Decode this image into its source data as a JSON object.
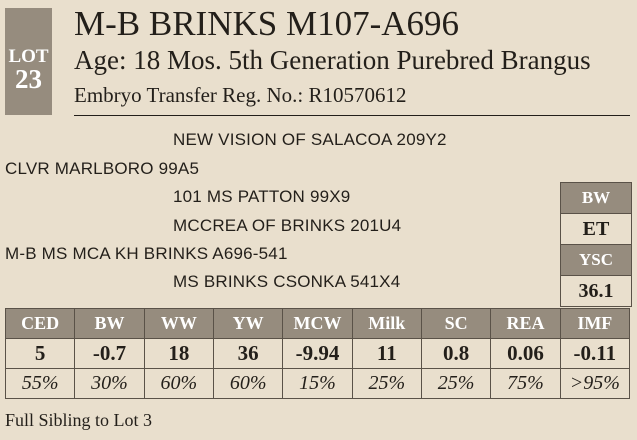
{
  "lot": {
    "label": "LOT",
    "number": "23"
  },
  "header": {
    "title": "M-B BRINKS M107-A696",
    "subtitle": "Age: 18 Mos.  5th Generation  Purebred Brangus",
    "details": "Embryo Transfer  Reg. No.: R10570612"
  },
  "pedigree": [
    "NEW VISION OF SALACOA  209Y2",
    "CLVR MARLBORO 99A5",
    "101 MS PATTON 99X9",
    "MCCREA OF BRINKS 201U4",
    "M-B MS MCA KH BRINKS A696-541",
    "MS BRINKS CSONKA 541X4"
  ],
  "side": {
    "bw_label": "BW",
    "bw_value": "ET",
    "ysc_label": "YSC",
    "ysc_value": "36.1"
  },
  "epd": {
    "headers": [
      "CED",
      "BW",
      "WW",
      "YW",
      "MCW",
      "Milk",
      "SC",
      "REA",
      "IMF"
    ],
    "values": [
      "5",
      "-0.7",
      "18",
      "36",
      "-9.94",
      "11",
      "0.8",
      "0.06",
      "-0.11"
    ],
    "percentiles": [
      "55%",
      "30%",
      "60%",
      "60%",
      "15%",
      "25%",
      "25%",
      "75%",
      ">95%"
    ]
  },
  "footer": "Full Sibling to Lot 3"
}
